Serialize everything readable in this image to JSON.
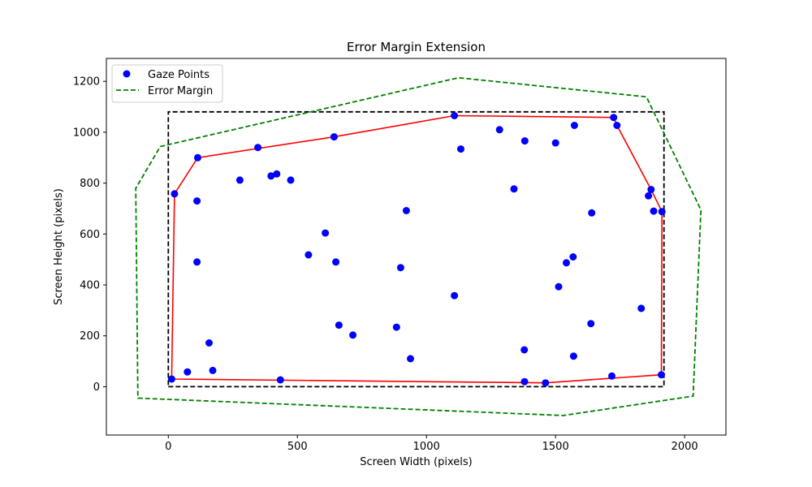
{
  "chart_data": {
    "type": "scatter",
    "title": "Error Margin Extension",
    "xlabel": "Screen Width (pixels)",
    "ylabel": "Screen Height (pixels)",
    "xlim": [
      -240,
      2160
    ],
    "ylim": [
      -190,
      1290
    ],
    "xticks": [
      0,
      500,
      1000,
      1500,
      2000
    ],
    "yticks": [
      0,
      200,
      400,
      600,
      800,
      1000,
      1200
    ],
    "grid": false,
    "legend": {
      "position": "top-left",
      "entries": [
        {
          "name": "Gaze Points",
          "marker": "circle",
          "color": "#0000ff"
        },
        {
          "name": "Error Margin",
          "marker": "dashed-line",
          "color": "#008000"
        }
      ]
    },
    "series": [
      {
        "name": "Gaze Points",
        "kind": "scatter",
        "color": "#0000ff",
        "points": [
          [
            1108,
            1065
          ],
          [
            1283,
            1010
          ],
          [
            1381,
            966
          ],
          [
            1573,
            1027
          ],
          [
            1725,
            1058
          ],
          [
            1738,
            1027
          ],
          [
            1500,
            958
          ],
          [
            1133,
            934
          ],
          [
            642,
            982
          ],
          [
            347,
            940
          ],
          [
            114,
            900
          ],
          [
            277,
            812
          ],
          [
            398,
            828
          ],
          [
            420,
            836
          ],
          [
            474,
            812
          ],
          [
            24,
            758
          ],
          [
            111,
            730
          ],
          [
            1339,
            777
          ],
          [
            1870,
            775
          ],
          [
            1860,
            750
          ],
          [
            1880,
            690
          ],
          [
            1912,
            688
          ],
          [
            1640,
            683
          ],
          [
            922,
            692
          ],
          [
            608,
            604
          ],
          [
            543,
            518
          ],
          [
            649,
            490
          ],
          [
            111,
            490
          ],
          [
            900,
            468
          ],
          [
            1568,
            510
          ],
          [
            1542,
            487
          ],
          [
            1512,
            393
          ],
          [
            1108,
            358
          ],
          [
            1832,
            308
          ],
          [
            1637,
            248
          ],
          [
            661,
            242
          ],
          [
            715,
            203
          ],
          [
            884,
            234
          ],
          [
            158,
            172
          ],
          [
            1379,
            145
          ],
          [
            938,
            110
          ],
          [
            1570,
            120
          ],
          [
            172,
            64
          ],
          [
            74,
            58
          ],
          [
            13,
            30
          ],
          [
            434,
            27
          ],
          [
            1380,
            20
          ],
          [
            1461,
            15
          ],
          [
            1718,
            42
          ],
          [
            1910,
            47
          ]
        ]
      },
      {
        "name": "Convex Hull",
        "kind": "polygon",
        "color": "#ff0000",
        "points": [
          [
            13,
            30
          ],
          [
            1461,
            15
          ],
          [
            1910,
            47
          ],
          [
            1912,
            688
          ],
          [
            1870,
            775
          ],
          [
            1738,
            1027
          ],
          [
            1725,
            1058
          ],
          [
            1108,
            1065
          ],
          [
            642,
            982
          ],
          [
            114,
            900
          ],
          [
            24,
            758
          ]
        ]
      },
      {
        "name": "Error Margin",
        "kind": "polygon",
        "style": "dashed",
        "color": "#008000",
        "points": [
          [
            -118,
            -45
          ],
          [
            1530,
            -113
          ],
          [
            2033,
            -37
          ],
          [
            2063,
            695
          ],
          [
            1852,
            1139
          ],
          [
            1124,
            1214
          ],
          [
            -31,
            944
          ],
          [
            -126,
            780
          ]
        ]
      },
      {
        "name": "Screen Boundary",
        "kind": "rectangle",
        "style": "dashed",
        "color": "#000000",
        "points": [
          [
            0,
            0
          ],
          [
            1920,
            0
          ],
          [
            1920,
            1080
          ],
          [
            0,
            1080
          ]
        ]
      }
    ]
  }
}
